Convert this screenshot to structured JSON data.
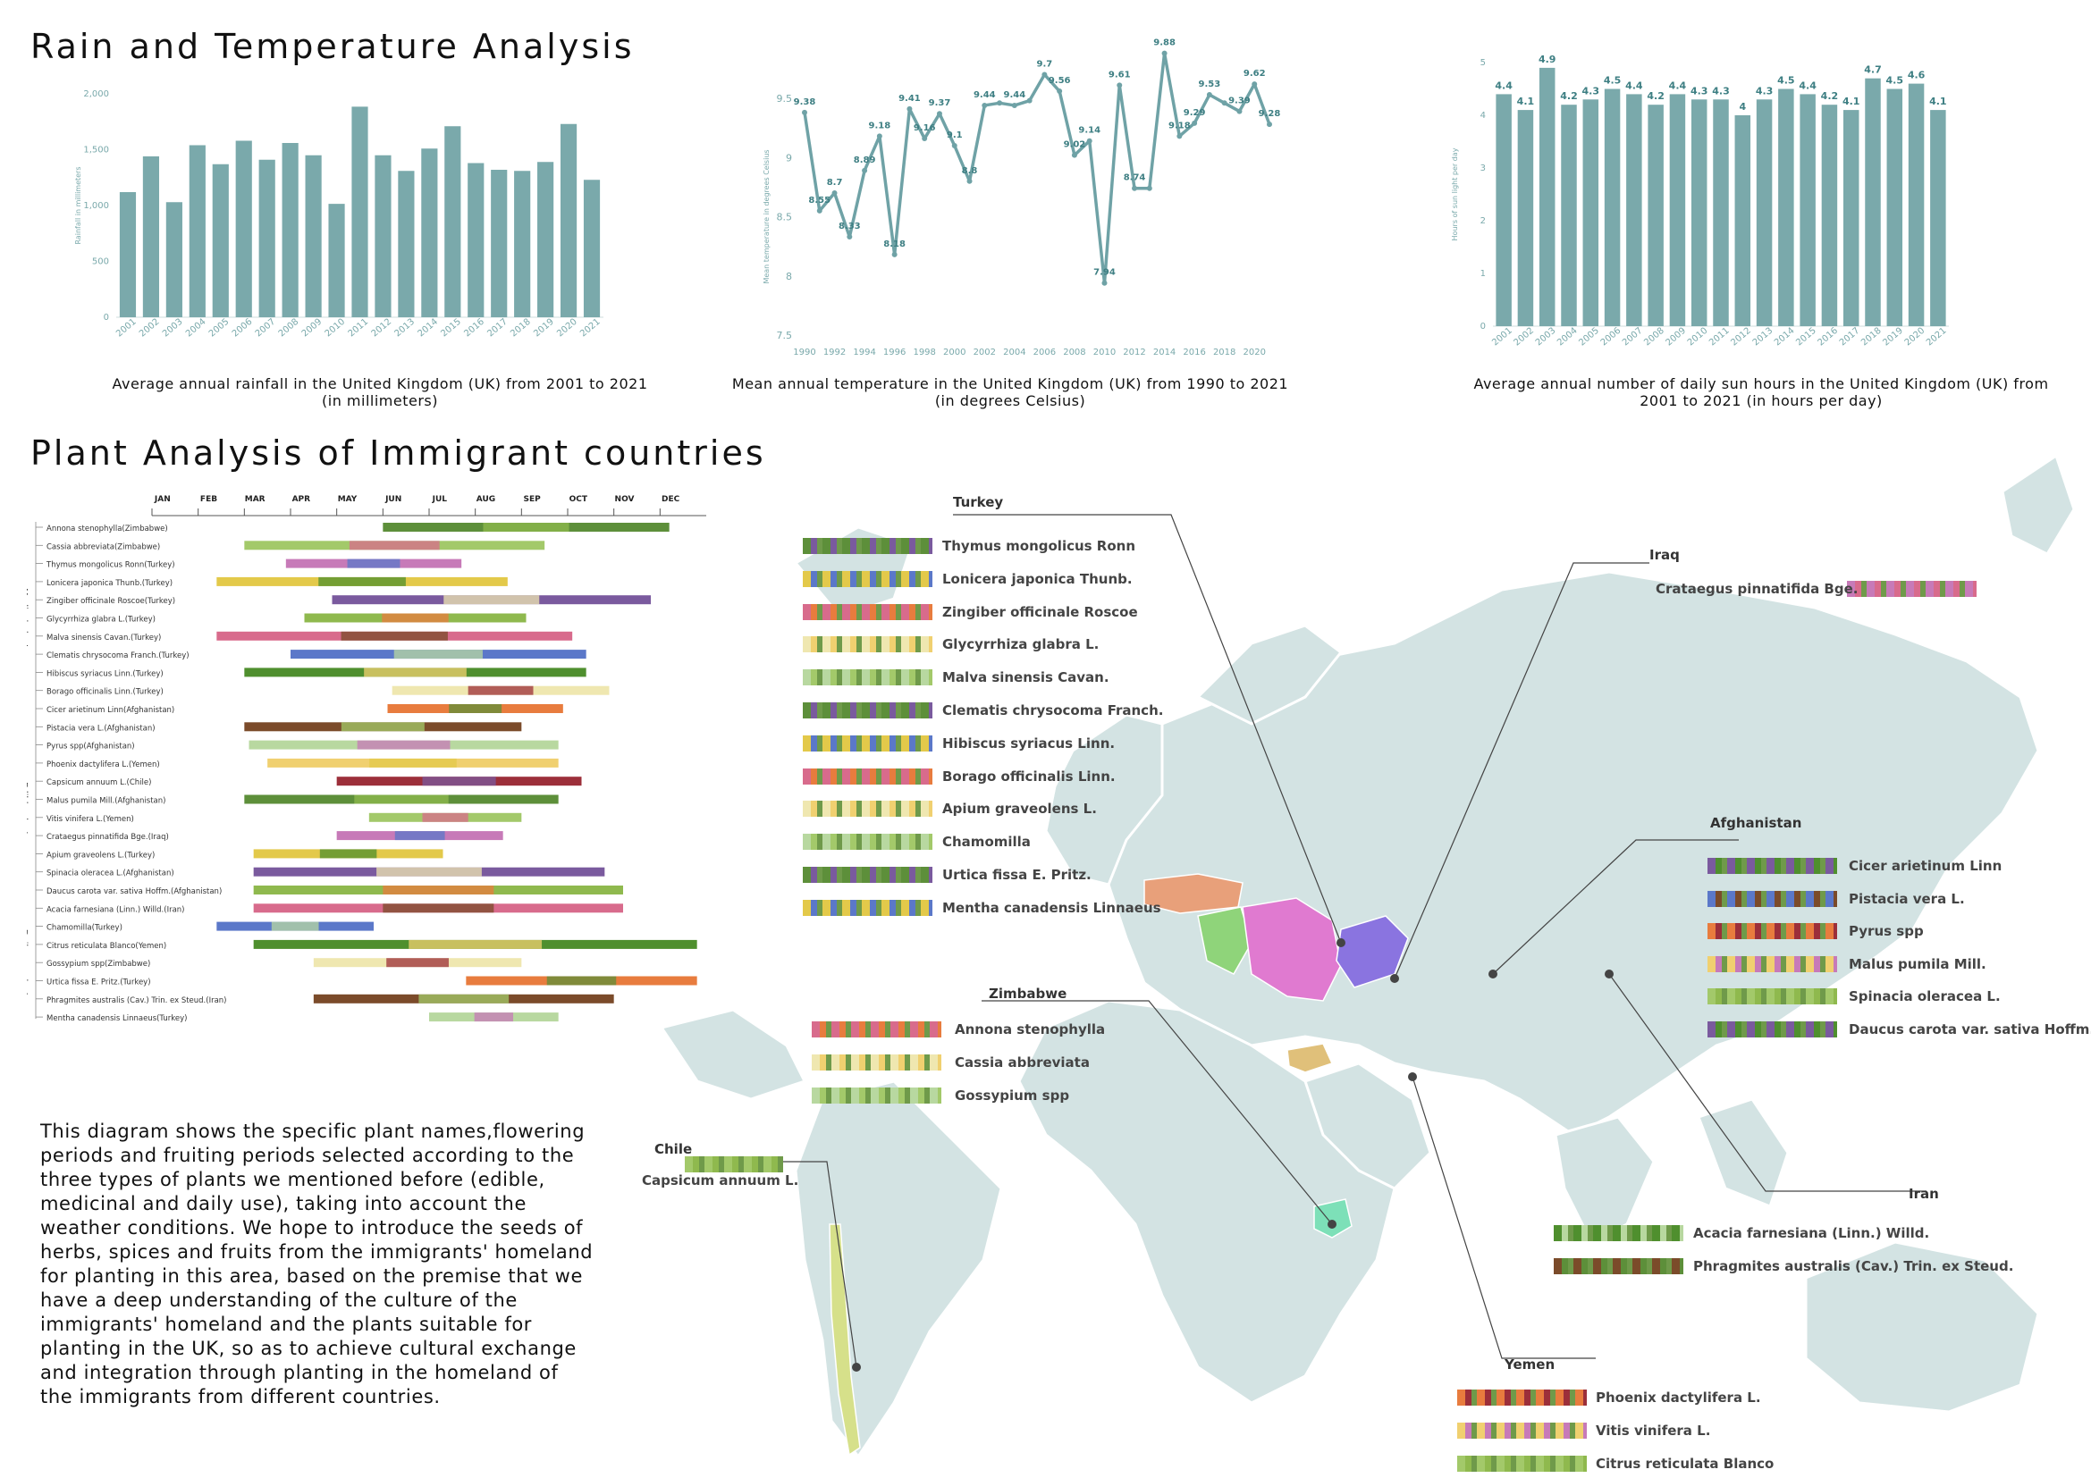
{
  "titles": {
    "section1": "Rain and Temperature Analysis",
    "section2": "Plant Analysis of Immigrant countries"
  },
  "colors": {
    "bar": "#7aa9ab",
    "line": "#6fa2a6",
    "map": "#d3e3e3",
    "label": "#3e7f83"
  },
  "chart_data": [
    {
      "type": "bar",
      "title": "Average annual rainfall in the United Kingdom (UK) from 2001 to 2021 (in millimeters)",
      "title_lines": [
        "Average annual rainfall in the United Kingdom (UK) from 2001 to 2021",
        "(in millimeters)"
      ],
      "ylabel": "Rainfall in millimeters",
      "categories": [
        "2001",
        "2002",
        "2003",
        "2004",
        "2005",
        "2006",
        "2007",
        "2008",
        "2009",
        "2010",
        "2011",
        "2012",
        "2013",
        "2014",
        "2015",
        "2016",
        "2017",
        "2018",
        "2019",
        "2020",
        "2021"
      ],
      "values": [
        1120,
        1440,
        1030,
        1540,
        1370,
        1580,
        1410,
        1560,
        1450,
        1015,
        1885,
        1450,
        1310,
        1510,
        1710,
        1380,
        1320,
        1310,
        1390,
        1730,
        1230
      ],
      "ylim": [
        0,
        2000
      ],
      "yticks": [
        0,
        500,
        1000,
        1500,
        2000
      ],
      "ytick_labels": [
        "0",
        "500",
        "1,000",
        "1,500",
        "2,000"
      ]
    },
    {
      "type": "line",
      "title": "Mean annual temperature in the United Kingdom (UK) from 1990 to 2021 (in degrees Celsius)",
      "title_lines": [
        "Mean annual temperature in the United Kingdom (UK) from 1990 to 2021",
        "(in degrees Celsius)"
      ],
      "ylabel": "Mean temperature in degrees Celsius",
      "x": [
        1990,
        1991,
        1992,
        1993,
        1994,
        1995,
        1996,
        1997,
        1998,
        1999,
        2000,
        2001,
        2002,
        2003,
        2004,
        2005,
        2006,
        2007,
        2008,
        2009,
        2010,
        2011,
        2012,
        2013,
        2014,
        2015,
        2016,
        2017,
        2018,
        2019,
        2020,
        2021
      ],
      "values": [
        9.38,
        8.55,
        8.7,
        8.33,
        8.89,
        9.18,
        8.18,
        9.41,
        9.16,
        9.37,
        9.1,
        8.8,
        9.44,
        9.46,
        9.44,
        9.48,
        9.7,
        9.56,
        9.02,
        9.14,
        7.94,
        9.61,
        8.74,
        8.74,
        9.88,
        9.18,
        9.29,
        9.53,
        9.46,
        9.39,
        9.62,
        9.28
      ],
      "labels": [
        "9.38",
        "8.55",
        "8.7",
        "8.33",
        "8.89",
        "9.18",
        "8.18",
        "9.41",
        "9.16",
        "9.37",
        "9.1",
        "8.8",
        "9.44",
        "",
        "9.44",
        "",
        "9.7",
        "9.56",
        "9.02",
        "9.14",
        "7.94",
        "9.61",
        "8.74",
        "",
        "9.88",
        "9.18",
        "9.29",
        "9.53",
        "",
        "9.39",
        "9.62",
        "9.28"
      ],
      "xticks": [
        1990,
        1992,
        1994,
        1996,
        1998,
        2000,
        2002,
        2004,
        2006,
        2008,
        2010,
        2012,
        2014,
        2016,
        2018,
        2020
      ],
      "ylim": [
        7.5,
        9.5
      ],
      "yticks": [
        7.5,
        8,
        8.5,
        9,
        9.5
      ],
      "ytick_labels": [
        "7.5",
        "8",
        "8.5",
        "9",
        "9.5"
      ]
    },
    {
      "type": "bar",
      "title": "Average annual number of daily sun hours in the United Kingdom (UK) from 2001 to 2021 (in hours per day)",
      "title_lines": [
        "Average annual number of daily sun hours in the United Kingdom (UK) from",
        "2001 to 2021 (in hours per day)"
      ],
      "ylabel": "Hours of sun light per day",
      "categories": [
        "2001",
        "2002",
        "2003",
        "2004",
        "2005",
        "2006",
        "2007",
        "2008",
        "2009",
        "2010",
        "2011",
        "2012",
        "2013",
        "2014",
        "2015",
        "2016",
        "2017",
        "2018",
        "2019",
        "2020",
        "2021"
      ],
      "values": [
        4.4,
        4.1,
        4.9,
        4.2,
        4.3,
        4.5,
        4.4,
        4.2,
        4.4,
        4.3,
        4.3,
        4,
        4.3,
        4.5,
        4.4,
        4.2,
        4.1,
        4.7,
        4.5,
        4.6,
        4.1
      ],
      "labels": [
        "4.4",
        "4.1",
        "4.9",
        "4.2",
        "4.3",
        "4.5",
        "4.4",
        "4.2",
        "4.4",
        "4.3",
        "4.3",
        "4",
        "4.3",
        "4.5",
        "4.4",
        "4.2",
        "4.1",
        "4.7",
        "4.5",
        "4.6",
        "4.1"
      ],
      "ylim": [
        0,
        5
      ],
      "yticks": [
        0,
        1,
        2,
        3,
        4,
        5
      ],
      "ytick_labels": [
        "0",
        "1",
        "2",
        "3",
        "4",
        "5"
      ]
    },
    {
      "type": "gantt",
      "months": [
        "JAN",
        "FEB",
        "MAR",
        "APR",
        "MAY",
        "JUN",
        "JUL",
        "AUG",
        "SEP",
        "OCT",
        "NOV",
        "DEC"
      ],
      "groups": [
        {
          "name": "Medical plant",
          "rows": [
            0,
            10
          ]
        },
        {
          "name": "Edible plant",
          "rows": [
            11,
            20
          ]
        },
        {
          "name": "Daily use plant",
          "rows": [
            21,
            27
          ]
        }
      ],
      "rows": [
        {
          "label": "Annona stenophylla(Zimbabwe)",
          "start": 5.0,
          "end": 11.2
        },
        {
          "label": "Cassia abbreviata(Zimbabwe)",
          "start": 2.0,
          "end": 8.5
        },
        {
          "label": "Thymus mongolicus Ronn(Turkey)",
          "start": 2.9,
          "end": 6.7
        },
        {
          "label": "Lonicera japonica Thunb.(Turkey)",
          "start": 1.4,
          "end": 7.7
        },
        {
          "label": "Zingiber officinale Roscoe(Turkey)",
          "start": 3.9,
          "end": 10.8
        },
        {
          "label": "Glycyrrhiza glabra L.(Turkey)",
          "start": 3.3,
          "end": 8.1
        },
        {
          "label": "Malva sinensis Cavan.(Turkey)",
          "start": 1.4,
          "end": 9.1
        },
        {
          "label": "Clematis chrysocoma Franch.(Turkey)",
          "start": 3.0,
          "end": 9.4
        },
        {
          "label": "Hibiscus syriacus Linn.(Turkey)",
          "start": 2.0,
          "end": 9.4
        },
        {
          "label": "Borago officinalis Linn.(Turkey)",
          "start": 5.2,
          "end": 9.9
        },
        {
          "label": "Cicer arietinum Linn(Afghanistan)",
          "start": 5.1,
          "end": 8.9
        },
        {
          "label": "Pistacia vera L.(Afghanistan)",
          "start": 2.0,
          "end": 8.0
        },
        {
          "label": "Pyrus spp(Afghanistan)",
          "start": 2.1,
          "end": 8.8
        },
        {
          "label": "Phoenix dactylifera L.(Yemen)",
          "start": 2.5,
          "end": 8.8
        },
        {
          "label": "Capsicum annuum L.(Chile)",
          "start": 4.0,
          "end": 9.3
        },
        {
          "label": "Malus pumila Mill.(Afghanistan)",
          "start": 2.0,
          "end": 8.8
        },
        {
          "label": "Vitis vinifera L.(Yemen)",
          "start": 4.7,
          "end": 8.0
        },
        {
          "label": "Crataegus pinnatifida Bge.(Iraq)",
          "start": 4.0,
          "end": 7.6
        },
        {
          "label": "Apium graveolens L.(Turkey)",
          "start": 2.2,
          "end": 6.3
        },
        {
          "label": "Spinacia oleracea L.(Afghanistan)",
          "start": 2.2,
          "end": 9.8
        },
        {
          "label": "Daucus carota var. sativa Hoffm.(Afghanistan)",
          "start": 2.2,
          "end": 10.2
        },
        {
          "label": "Acacia farnesiana (Linn.) Willd.(Iran)",
          "start": 2.2,
          "end": 10.2
        },
        {
          "label": "Chamomilla(Turkey)",
          "start": 1.4,
          "end": 4.8
        },
        {
          "label": "Citrus reticulata Blanco(Yemen)",
          "start": 2.2,
          "end": 11.8
        },
        {
          "label": "Gossypium spp(Zimbabwe)",
          "start": 3.5,
          "end": 8.0
        },
        {
          "label": "Urtica fissa E. Pritz.(Turkey)",
          "start": 6.8,
          "end": 11.8
        },
        {
          "label": "Phragmites australis (Cav.) Trin. ex Steud.(Iran)",
          "start": 3.5,
          "end": 10.0
        },
        {
          "label": "Mentha canadensis Linnaeus(Turkey)",
          "start": 6.0,
          "end": 8.8
        }
      ]
    }
  ],
  "description": "This diagram shows the specific plant names,flowering periods and fruiting periods selected according to the three types of plants we mentioned before (edible, medicinal and daily use), taking into account the weather conditions. We hope to introduce the seeds of herbs, spices and fruits from the immigrants' homeland for planting in this area, based on the premise that we have a deep understanding of the culture of the immigrants' homeland and the plants suitable for planting in the UK, so as to achieve cultural exchange and integration through planting in the homeland of the immigrants from different countries.",
  "countries": {
    "turkey": {
      "name": "Turkey",
      "color": "#e8a07a",
      "plants": [
        "Thymus mongolicus Ronn",
        "Lonicera japonica Thunb.",
        "Zingiber officinale Roscoe",
        "Glycyrrhiza glabra L.",
        "Malva sinensis Cavan.",
        "Clematis chrysocoma Franch.",
        "Hibiscus syriacus Linn.",
        "Borago officinalis Linn.",
        "Apium graveolens L.",
        "Chamomilla",
        "Urtica fissa E. Pritz.",
        "Mentha canadensis Linnaeus"
      ]
    },
    "iraq": {
      "name": "Iraq",
      "color": "#8fd47a",
      "plants": [
        "Crataegus pinnatifida Bge."
      ]
    },
    "afghanistan": {
      "name": "Afghanistan",
      "color": "#8a74e0",
      "plants": [
        "Cicer arietinum Linn",
        "Pistacia vera L.",
        "Pyrus spp",
        "Malus pumila Mill.",
        "Spinacia oleracea L.",
        "Daucus carota var. sativa Hoffm."
      ]
    },
    "zimbabwe": {
      "name": "Zimbabwe",
      "color": "#7de0b8",
      "plants": [
        "Annona stenophylla",
        "Cassia abbreviata",
        "Gossypium spp"
      ]
    },
    "chile": {
      "name": "Chile",
      "color": "#d6e08a",
      "plants": [
        "Capsicum annuum L."
      ]
    },
    "iran": {
      "name": "Iran",
      "color": "#e07ad0",
      "plants": [
        "Acacia farnesiana (Linn.) Willd.",
        "Phragmites australis (Cav.) Trin. ex Steud."
      ]
    },
    "yemen": {
      "name": "Yemen",
      "color": "#e0c07a",
      "plants": [
        "Phoenix dactylifera L.",
        "Vitis vinifera L.",
        "Citrus reticulata Blanco"
      ]
    }
  }
}
